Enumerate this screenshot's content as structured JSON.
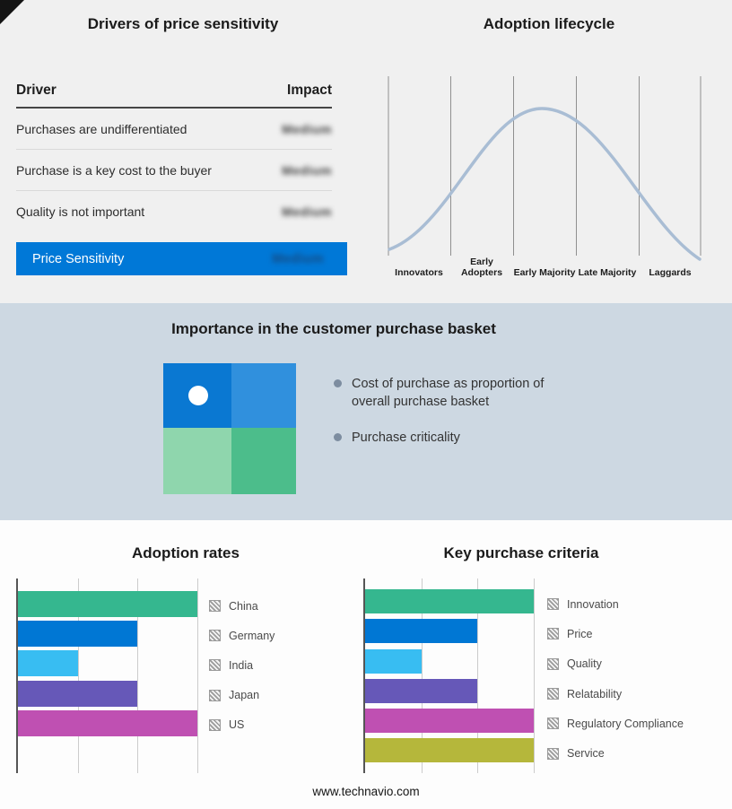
{
  "page": {
    "footer": "www.technavio.com"
  },
  "colors": {
    "highlight_blue": "#0078d7",
    "band_background": "#cdd8e2",
    "curve": "#a9bdd4",
    "quadrant": [
      "#0a78d2",
      "#3090dd",
      "#8fd6ad",
      "#4cbd8b"
    ]
  },
  "drivers": {
    "title": "Drivers of price sensitivity",
    "columns": {
      "driver": "Driver",
      "impact": "Impact"
    },
    "rows": [
      {
        "driver": "Purchases are undifferentiated",
        "impact": "Medium"
      },
      {
        "driver": "Purchase is a key cost to the buyer",
        "impact": "Medium"
      },
      {
        "driver": "Quality is not important",
        "impact": "Medium"
      }
    ],
    "highlight": {
      "driver": "Price Sensitivity",
      "impact": "Medium"
    }
  },
  "basket": {
    "title": "Importance in the customer purchase basket",
    "bullets": [
      "Cost of purchase as proportion of overall purchase basket",
      "Purchase criticality"
    ]
  },
  "chart_data": [
    {
      "id": "adoption-lifecycle",
      "type": "line",
      "shape": "bell-curve",
      "title": "Adoption lifecycle",
      "categories": [
        "Innovators",
        "Early Adopters",
        "Early Majority",
        "Late Majority",
        "Laggards"
      ],
      "peak_category": "Early Majority",
      "grid": "vertical",
      "curve_color": "#a9bdd4"
    },
    {
      "id": "adoption-rates",
      "type": "bar",
      "orientation": "horizontal",
      "title": "Adoption rates",
      "categories": [
        "China",
        "Germany",
        "India",
        "Japan",
        "US"
      ],
      "values": [
        3,
        2,
        1,
        2,
        3
      ],
      "xlim": [
        0,
        3
      ],
      "colors": [
        "#35b78f",
        "#0077d4",
        "#38bdf2",
        "#6658b8",
        "#bf50b2"
      ],
      "legend_position": "right"
    },
    {
      "id": "key-purchase-criteria",
      "type": "bar",
      "orientation": "horizontal",
      "title": "Key purchase criteria",
      "categories": [
        "Innovation",
        "Price",
        "Quality",
        "Relatability",
        "Regulatory Compliance",
        "Service"
      ],
      "values": [
        3,
        2,
        1,
        2,
        3,
        3
      ],
      "xlim": [
        0,
        3
      ],
      "colors": [
        "#35b78f",
        "#0077d4",
        "#38bdf2",
        "#6658b8",
        "#bf50b2",
        "#b5b73b"
      ],
      "legend_position": "right"
    }
  ]
}
